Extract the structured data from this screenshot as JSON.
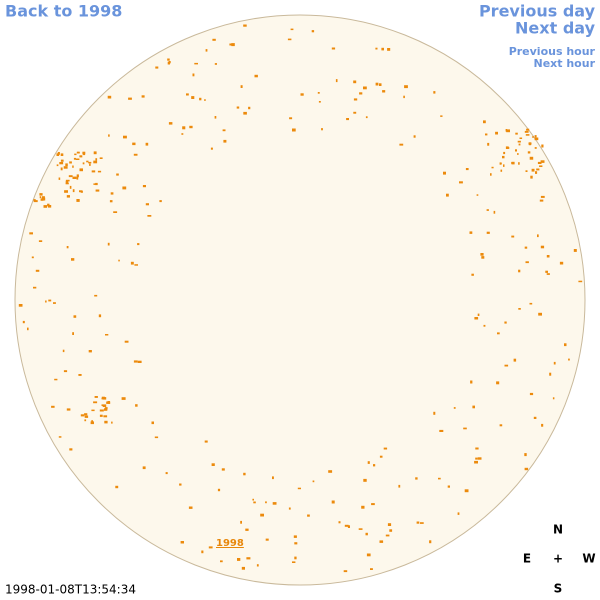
{
  "links": {
    "back": "Back to 1998",
    "previous_day": "Previous day",
    "next_day": "Next day",
    "previous_hour": "Previous hour",
    "next_hour": "Next hour"
  },
  "disk_label": "1998",
  "timestamp": "1998-01-08T13:54:34",
  "compass": {
    "north": "N",
    "east": "E",
    "center": "+",
    "west": "W",
    "south": "S"
  }
}
